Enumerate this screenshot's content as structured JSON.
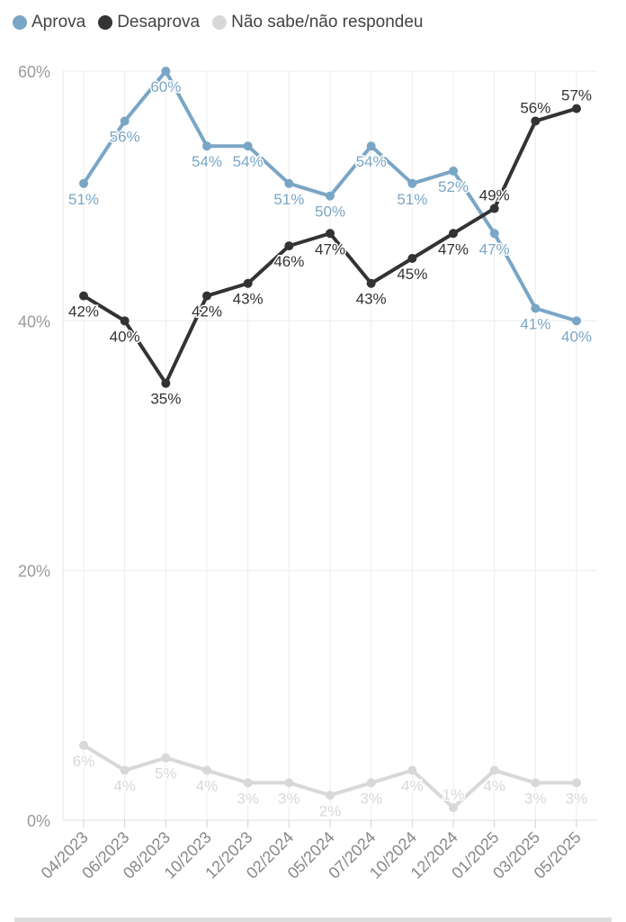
{
  "chart_data": {
    "type": "line",
    "categories": [
      "04/2023",
      "06/2023",
      "08/2023",
      "10/2023",
      "12/2023",
      "02/2024",
      "05/2024",
      "07/2024",
      "10/2024",
      "12/2024",
      "01/2025",
      "03/2025",
      "05/2025"
    ],
    "series": [
      {
        "name": "Aprova",
        "color": "#7aa6c6",
        "values": [
          51,
          56,
          60,
          54,
          54,
          51,
          50,
          54,
          51,
          52,
          47,
          41,
          40
        ]
      },
      {
        "name": "Desaprova",
        "color": "#333333",
        "values": [
          42,
          40,
          35,
          42,
          43,
          46,
          47,
          43,
          45,
          47,
          49,
          56,
          57
        ]
      },
      {
        "name": "Não sabe/não respondeu",
        "color": "#d8d8d8",
        "values": [
          6,
          4,
          5,
          4,
          3,
          3,
          2,
          3,
          4,
          1,
          4,
          3,
          3
        ]
      }
    ],
    "ylim": [
      0,
      60
    ],
    "yticks": [
      0,
      20,
      40,
      60
    ],
    "ytick_labels": [
      "0%",
      "20%",
      "40%",
      "60%"
    ],
    "value_suffix": "%",
    "grid": true,
    "legend_position": "top-left"
  }
}
